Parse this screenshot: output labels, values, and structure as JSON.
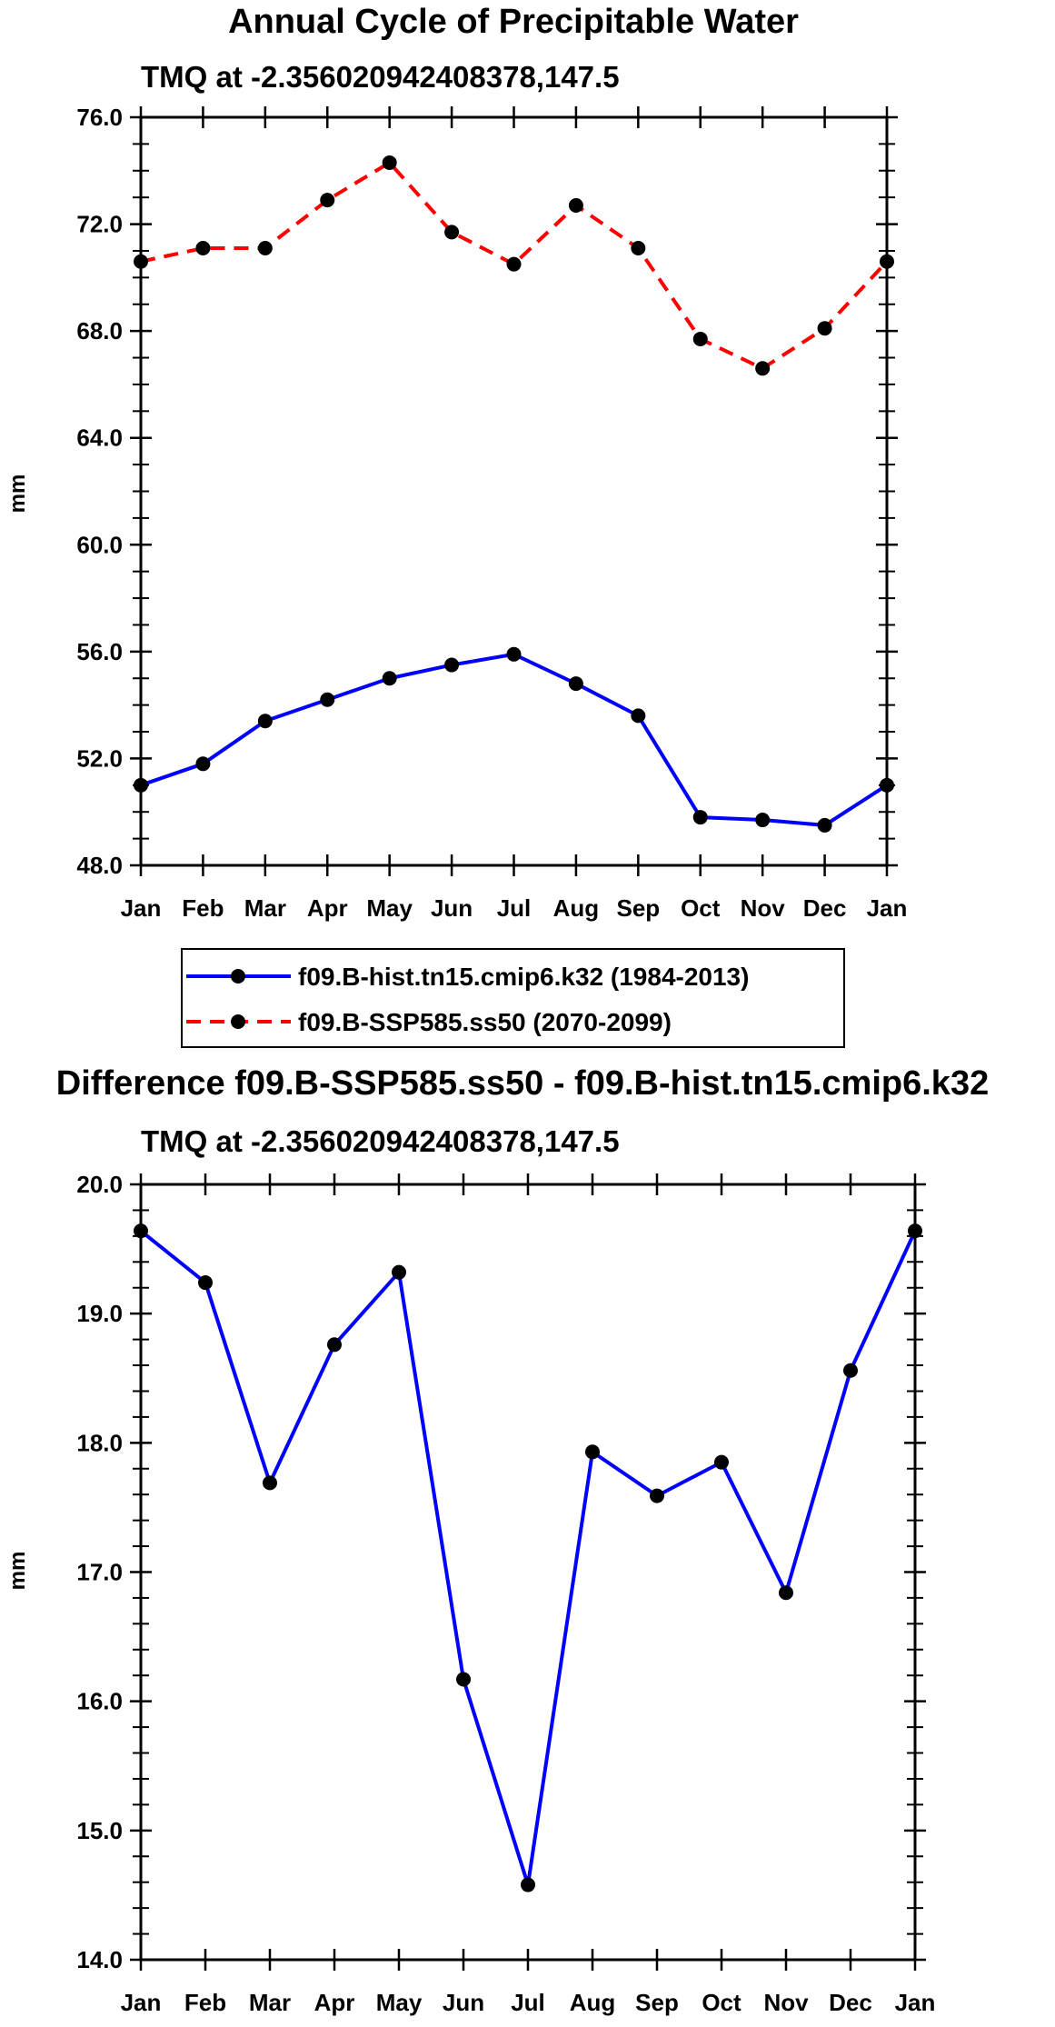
{
  "chart_data": [
    {
      "type": "line",
      "title": "Annual Cycle of Precipitable Water",
      "subtitle": "TMQ at -2.356020942408378,147.5",
      "xlabel": "",
      "ylabel": "mm",
      "categories": [
        "Jan",
        "Feb",
        "Mar",
        "Apr",
        "May",
        "Jun",
        "Jul",
        "Aug",
        "Sep",
        "Oct",
        "Nov",
        "Dec",
        "Jan"
      ],
      "ylim": [
        48.0,
        76.0
      ],
      "yticks": [
        "48.0",
        "52.0",
        "56.0",
        "60.0",
        "64.0",
        "68.0",
        "72.0",
        "76.0"
      ],
      "series": [
        {
          "name": "f09.B-hist.tn15.cmip6.k32 (1984-2013)",
          "color": "#0000ff",
          "dash": "solid",
          "values": [
            51.0,
            51.8,
            53.4,
            54.2,
            55.0,
            55.5,
            55.9,
            54.8,
            53.6,
            49.8,
            49.7,
            49.5,
            51.0
          ]
        },
        {
          "name": "f09.B-SSP585.ss50 (2070-2099)",
          "color": "#ff0000",
          "dash": "dashed",
          "values": [
            70.6,
            71.1,
            71.1,
            72.9,
            74.3,
            71.7,
            70.5,
            72.7,
            71.1,
            67.7,
            66.6,
            68.1,
            70.6
          ]
        }
      ],
      "legend": "below"
    },
    {
      "type": "line",
      "title": "Difference f09.B-SSP585.ss50 - f09.B-hist.tn15.cmip6.k32",
      "subtitle": "TMQ at -2.356020942408378,147.5",
      "xlabel": "",
      "ylabel": "mm",
      "categories": [
        "Jan",
        "Feb",
        "Mar",
        "Apr",
        "May",
        "Jun",
        "Jul",
        "Aug",
        "Sep",
        "Oct",
        "Nov",
        "Dec",
        "Jan"
      ],
      "ylim": [
        14.0,
        20.0
      ],
      "yticks": [
        "14.0",
        "15.0",
        "16.0",
        "17.0",
        "18.0",
        "19.0",
        "20.0"
      ],
      "series": [
        {
          "name": "Difference",
          "color": "#0000ff",
          "dash": "solid",
          "values": [
            19.64,
            19.24,
            17.69,
            18.76,
            19.32,
            16.17,
            14.58,
            17.93,
            17.59,
            17.85,
            16.84,
            18.56,
            19.64
          ]
        }
      ]
    }
  ]
}
